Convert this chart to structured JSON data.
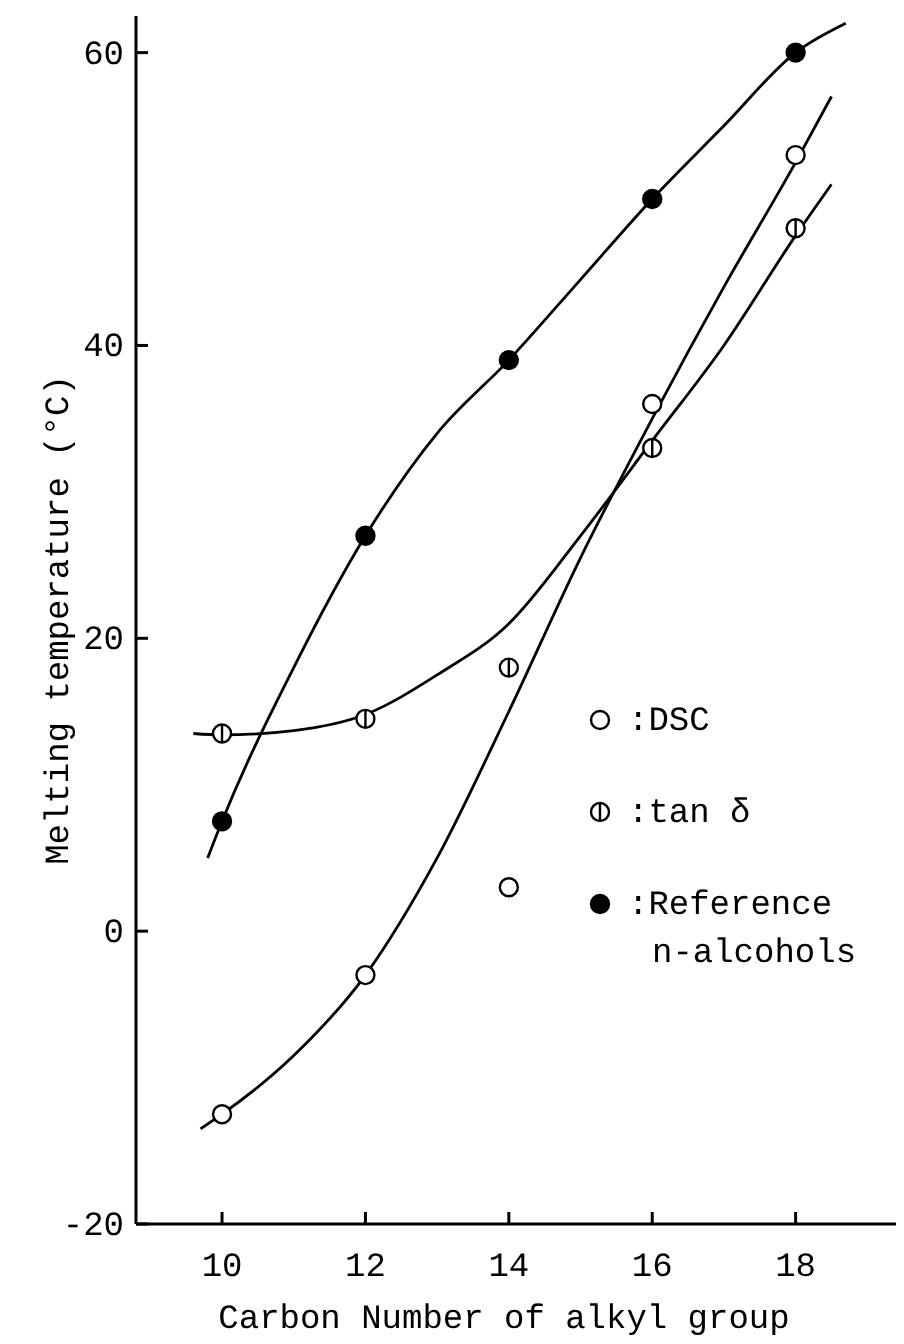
{
  "chart_data": {
    "type": "scatter",
    "xlabel": "Carbon Number of alkyl group",
    "ylabel": "Melting temperature (°C)",
    "xlim": [
      8.8,
      19.4
    ],
    "xticks": [
      10,
      12,
      14,
      16,
      18
    ],
    "ylim": [
      -20,
      62.5
    ],
    "yticks": [
      -20,
      0,
      20,
      40,
      60
    ],
    "grid": false,
    "legend": "right",
    "line_style": "solid",
    "series": [
      {
        "name": ":DSC",
        "marker": "circle",
        "color": "#ffffff",
        "x": [
          10,
          12,
          14,
          16,
          18
        ],
        "values": [
          -12.5,
          -3,
          3,
          36,
          53
        ]
      },
      {
        "name": ":tan δ",
        "marker": "cross",
        "color": "#ffffff",
        "x": [
          10,
          12,
          14,
          16,
          18
        ],
        "values": [
          13.5,
          14.5,
          18,
          33,
          48
        ]
      },
      {
        "name": ":Reference n-alcohols",
        "marker": "circle",
        "color": "#000000",
        "x": [
          10,
          12,
          14,
          16,
          18
        ],
        "values": [
          7.5,
          27,
          39,
          50,
          60
        ]
      },
      {
        "type": "line",
        "color": "#000000",
        "x": [
          9.7,
          10,
          11,
          12,
          13,
          14,
          15,
          16,
          17,
          18,
          18.5
        ],
        "values": [
          -13.5,
          -12.5,
          -8.5,
          -3,
          5,
          15,
          25.5,
          35,
          44,
          52.5,
          57
        ]
      },
      {
        "type": "line",
        "color": "#000000",
        "x": [
          9.6,
          10,
          11,
          12,
          13,
          14,
          15,
          16,
          17,
          18,
          18.5
        ],
        "values": [
          13.5,
          13.4,
          13.7,
          14.8,
          17.5,
          21,
          27,
          33.5,
          40,
          47.5,
          51
        ]
      },
      {
        "type": "line",
        "color": "#000000",
        "x": [
          9.8,
          10,
          11,
          12,
          13,
          14,
          15,
          16,
          17,
          18,
          18.7
        ],
        "values": [
          5,
          7.5,
          18,
          27,
          34,
          39,
          44.5,
          50,
          55,
          60,
          62
        ]
      }
    ]
  }
}
